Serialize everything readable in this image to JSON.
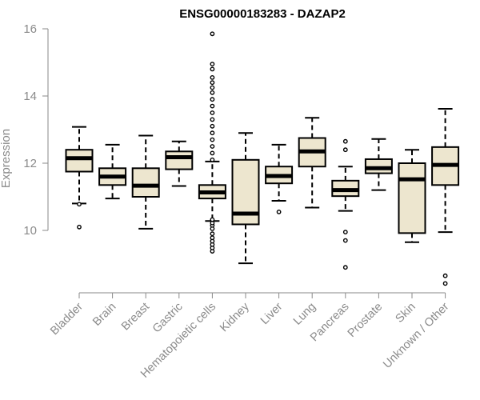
{
  "chart_data": {
    "type": "boxplot",
    "title": "ENSG00000183283 - DAZAP2",
    "xlabel": "",
    "ylabel": "Expression",
    "ylim": [
      8.4,
      16.1
    ],
    "yticks": [
      10,
      12,
      14,
      16
    ],
    "categories": [
      "Bladder",
      "Brain",
      "Breast",
      "Gastric",
      "Hematopoietic cells",
      "Kidney",
      "Liver",
      "Lung",
      "Pancreas",
      "Prostate",
      "Skin",
      "Unknown / Other"
    ],
    "boxes": [
      {
        "category": "Bladder",
        "whisker_low": 10.8,
        "q1": 11.75,
        "median": 12.15,
        "q3": 12.4,
        "whisker_high": 13.08,
        "outliers": [
          10.1,
          10.78
        ]
      },
      {
        "category": "Brain",
        "whisker_low": 10.95,
        "q1": 11.35,
        "median": 11.6,
        "q3": 11.85,
        "whisker_high": 12.55,
        "outliers": []
      },
      {
        "category": "Breast",
        "whisker_low": 10.05,
        "q1": 11.0,
        "median": 11.33,
        "q3": 11.85,
        "whisker_high": 12.82,
        "outliers": []
      },
      {
        "category": "Gastric",
        "whisker_low": 11.32,
        "q1": 11.82,
        "median": 12.18,
        "q3": 12.35,
        "whisker_high": 12.65,
        "outliers": []
      },
      {
        "category": "Hematopoietic cells",
        "whisker_low": 10.28,
        "q1": 10.95,
        "median": 11.13,
        "q3": 11.35,
        "whisker_high": 12.05,
        "outliers": [
          9.38,
          9.48,
          9.58,
          9.68,
          9.78,
          9.9,
          10.05,
          10.15,
          10.22,
          10.32,
          12.1,
          12.3,
          12.5,
          12.7,
          12.9,
          13.1,
          13.3,
          13.5,
          13.7,
          13.9,
          14.1,
          14.25,
          14.4,
          14.55,
          14.8,
          14.95,
          15.85
        ]
      },
      {
        "category": "Kidney",
        "whisker_low": 9.02,
        "q1": 10.18,
        "median": 10.5,
        "q3": 12.1,
        "whisker_high": 12.9,
        "outliers": []
      },
      {
        "category": "Liver",
        "whisker_low": 10.88,
        "q1": 11.4,
        "median": 11.62,
        "q3": 11.9,
        "whisker_high": 12.55,
        "outliers": [
          10.55
        ]
      },
      {
        "category": "Lung",
        "whisker_low": 10.68,
        "q1": 11.9,
        "median": 12.35,
        "q3": 12.75,
        "whisker_high": 13.35,
        "outliers": []
      },
      {
        "category": "Pancreas",
        "whisker_low": 10.58,
        "q1": 11.02,
        "median": 11.2,
        "q3": 11.48,
        "whisker_high": 11.9,
        "outliers": [
          8.9,
          9.7,
          9.95,
          12.4,
          12.65
        ]
      },
      {
        "category": "Prostate",
        "whisker_low": 11.2,
        "q1": 11.7,
        "median": 11.85,
        "q3": 12.12,
        "whisker_high": 12.72,
        "outliers": []
      },
      {
        "category": "Skin",
        "whisker_low": 9.65,
        "q1": 9.92,
        "median": 11.52,
        "q3": 12.0,
        "whisker_high": 12.4,
        "outliers": []
      },
      {
        "category": "Unknown / Other",
        "whisker_low": 9.95,
        "q1": 11.35,
        "median": 11.95,
        "q3": 12.48,
        "whisker_high": 13.62,
        "outliers": [
          8.42,
          8.65
        ]
      }
    ],
    "colors": {
      "box_fill": "#ede6cf",
      "box_stroke": "#000000",
      "axis": "#8a8a8a"
    }
  }
}
